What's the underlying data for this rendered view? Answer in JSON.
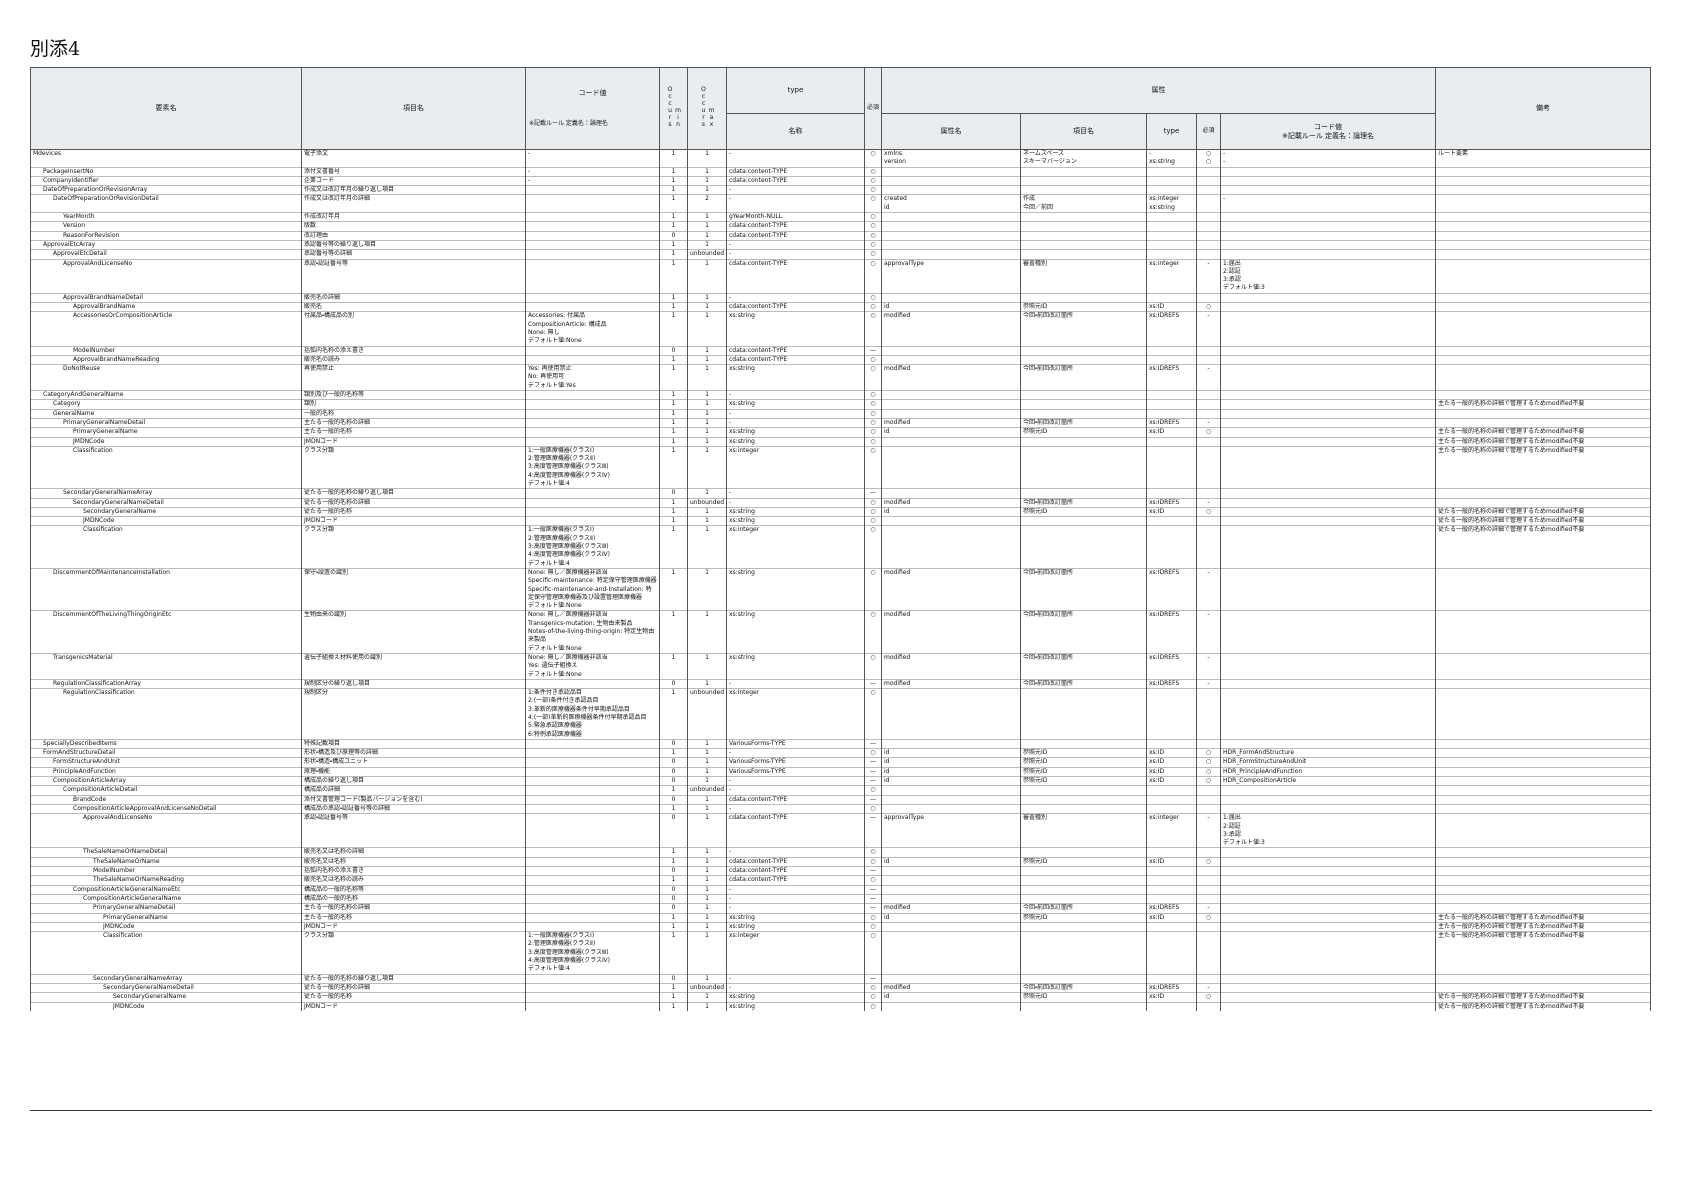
{
  "title": "別添4",
  "header": {
    "element": "要素名",
    "item": "項目名",
    "code": "コード値",
    "code_rule": "※記載ルール 定義名：論理名",
    "occurs": "Occurs",
    "min": "min",
    "max": "max",
    "type": "type",
    "type_name": "名称",
    "required": "必須",
    "attributes": "属性",
    "attr_name": "属性名",
    "attr_item": "項目名",
    "attr_type": "type",
    "attr_required": "必須",
    "attr_code": "コード値\n※記載ルール 定義名：論理名",
    "note": "備考"
  },
  "rows": [
    {
      "element": "Mdevices",
      "item": "電子添文",
      "code": "-",
      "min": "1",
      "max": "1",
      "type": "-",
      "required": "○",
      "attr_name": "xmlns\nversion",
      "attr_item": "ネームスペース\nスキーマバージョン",
      "attr_type": "-\nxs:string",
      "attr_required": "○\n○",
      "attr_code": "-\n-",
      "note": "ルート要素"
    },
    {
      "element": "PackageInsertNo",
      "item": "添付文書番号",
      "code": "-",
      "min": "1",
      "max": "1",
      "type": "cdata:content-TYPE",
      "required": "○"
    },
    {
      "element": "CompanyIdentifier",
      "item": "企業コード",
      "code": "-",
      "min": "1",
      "max": "1",
      "type": "cdata:content-TYPE",
      "required": "○"
    },
    {
      "element": "DateOfPreparationOrRevisionArray",
      "item": "作成又は改訂年月の繰り返し項目",
      "min": "1",
      "max": "1",
      "type": "-",
      "required": "○"
    },
    {
      "element": "DateOfPreparationOrRevisionDetail",
      "item": "作成又は改訂年月の詳細",
      "min": "1",
      "max": "2",
      "type": "-",
      "required": "○",
      "attr_name": "created\nid",
      "attr_item": "作成\n今回／前回",
      "attr_type": "xs:integer\nxs:string",
      "attr_code": "-"
    },
    {
      "element": "YearMonth",
      "item": "作成改訂年月",
      "min": "1",
      "max": "1",
      "type": "gYearMonth-NULL",
      "required": "○"
    },
    {
      "element": "Version",
      "item": "版数",
      "min": "1",
      "max": "1",
      "type": "cdata:content-TYPE",
      "required": "○"
    },
    {
      "element": "ReasonForRevision",
      "item": "改訂理由",
      "min": "0",
      "max": "1",
      "type": "cdata:content-TYPE",
      "required": "○"
    },
    {
      "element": "ApprovalEtcArray",
      "item": "承認番号等の繰り返し項目",
      "min": "1",
      "max": "1",
      "type": "-",
      "required": "○"
    },
    {
      "element": "ApprovalEtcDetail",
      "item": "承認番号等の詳細",
      "min": "1",
      "max": "unbounded",
      "type": "-",
      "required": "○"
    },
    {
      "element": "ApprovalAndLicenseNo",
      "item": "承認・認証番号等",
      "min": "1",
      "max": "1",
      "type": "cdata:content-TYPE",
      "required": "○",
      "attr_name": "approvalType",
      "attr_item": "審査種別",
      "attr_type": "xs:integer",
      "attr_required": "-",
      "attr_code": "1:届出\n2:認証\n3:承認\nデフォルト値:3"
    },
    {
      "element": "ApprovalBrandNameDetail",
      "item": "販売名の詳細",
      "min": "1",
      "max": "1",
      "type": "-",
      "required": "○"
    },
    {
      "element": "ApprovalBrandName",
      "item": "販売名",
      "min": "1",
      "max": "1",
      "type": "cdata:content-TYPE",
      "required": "○",
      "attr_name": "id",
      "attr_item": "参照元ID",
      "attr_type": "xs:ID",
      "attr_required": "○"
    },
    {
      "element": "AccessoriesOrCompositionArticle",
      "item": "付属品・構成品の別",
      "code": "Accessories: 付属品\nCompositionArticle: 構成品\nNone: 無し\nデフォルト値:None",
      "min": "1",
      "max": "1",
      "type": "xs:string",
      "required": "○",
      "attr_name": "modified",
      "attr_item": "今回・前回改訂箇所",
      "attr_type": "xs:IDREFS",
      "attr_required": "-"
    },
    {
      "element": "ModelNumber",
      "item": "括弧内名称の添え書き",
      "min": "0",
      "max": "1",
      "type": "cdata:content-TYPE",
      "required": "—"
    },
    {
      "element": "ApprovalBrandNameReading",
      "item": "販売名の読み",
      "min": "1",
      "max": "1",
      "type": "cdata:content-TYPE",
      "required": "○"
    },
    {
      "element": "DoNotReuse",
      "item": "再使用禁止",
      "code": "Yes: 再使用禁止\nNo: 再使用可\nデフォルト値:Yes",
      "min": "1",
      "max": "1",
      "type": "xs:string",
      "required": "○",
      "attr_name": "modified",
      "attr_item": "今回・前回改訂箇所",
      "attr_type": "xs:IDREFS",
      "attr_required": "-"
    },
    {
      "element": "CategoryAndGeneralName",
      "item": "類別及び一般的名称等",
      "min": "1",
      "max": "1",
      "type": "-",
      "required": "○"
    },
    {
      "element": "Category",
      "item": "類別",
      "min": "1",
      "max": "1",
      "type": "xs:string",
      "required": "○",
      "note": "主たる一般的名称の詳細で管理するためmodified不要"
    },
    {
      "element": "GeneralName",
      "item": "一般的名称",
      "min": "1",
      "max": "1",
      "type": "-",
      "required": "○"
    },
    {
      "element": "PrimaryGeneralNameDetail",
      "item": "主たる一般的名称の詳細",
      "min": "1",
      "max": "1",
      "type": "-",
      "required": "○",
      "attr_name": "modified",
      "attr_item": "今回・前回改訂箇所",
      "attr_type": "xs:IDREFS",
      "attr_required": "-"
    },
    {
      "element": "PrimaryGeneralName",
      "item": "主たる一般的名称",
      "min": "1",
      "max": "1",
      "type": "xs:string",
      "required": "○",
      "attr_name": "id",
      "attr_item": "参照元ID",
      "attr_type": "xs:ID",
      "attr_required": "○",
      "note": "主たる一般的名称の詳細で管理するためmodified不要"
    },
    {
      "element": "JMDNCode",
      "item": "JMDNコード",
      "min": "1",
      "max": "1",
      "type": "xs:string",
      "required": "○",
      "note": "主たる一般的名称の詳細で管理するためmodified不要"
    },
    {
      "element": "Classification",
      "item": "クラス分類",
      "code": "1:一般医療機器(クラスⅠ)\n2:管理医療機器(クラスⅡ)\n3:高度管理医療機器(クラスⅢ)\n4:高度管理医療機器(クラスⅣ)\nデフォルト値:4",
      "min": "1",
      "max": "1",
      "type": "xs:integer",
      "required": "○",
      "note": "主たる一般的名称の詳細で管理するためmodified不要"
    },
    {
      "element": "SecondaryGeneralNameArray",
      "item": "従たる一般的名称の繰り返し項目",
      "min": "0",
      "max": "1",
      "type": "-",
      "required": "—"
    },
    {
      "element": "SecondaryGeneralNameDetail",
      "item": "従たる一般的名称の詳細",
      "min": "1",
      "max": "unbounded",
      "type": "-",
      "required": "○",
      "attr_name": "modified",
      "attr_item": "今回・前回改訂箇所",
      "attr_type": "xs:IDREFS",
      "attr_required": "-"
    },
    {
      "element": "SecondaryGeneralName",
      "item": "従たる一般的名称",
      "min": "1",
      "max": "1",
      "type": "xs:string",
      "required": "○",
      "attr_name": "id",
      "attr_item": "参照元ID",
      "attr_type": "xs:ID",
      "attr_required": "○",
      "note": "従たる一般的名称の詳細で管理するためmodified不要"
    },
    {
      "element": "JMDNCode",
      "item": "JMDNコード",
      "min": "1",
      "max": "1",
      "type": "xs:string",
      "required": "○",
      "note": "従たる一般的名称の詳細で管理するためmodified不要"
    },
    {
      "element": "Classification",
      "item": "クラス分類",
      "code": "1:一般医療機器(クラスⅠ)\n2:管理医療機器(クラスⅡ)\n3:高度管理医療機器(クラスⅢ)\n4:高度管理医療機器(クラスⅣ)\nデフォルト値:4",
      "min": "1",
      "max": "1",
      "type": "xs:integer",
      "required": "○",
      "note": "従たる一般的名称の詳細で管理するためmodified不要"
    },
    {
      "element": "DiscernmentOfMaintenanceInstallation",
      "item": "保守・設置の識別",
      "code": "None: 無し／医療機器非該当\nSpecific-maintenance: 特定保守管理医療機器\nSpecific-maintenance-and-Installation: 特定保守管理医療機器及び設置管理医療機器\nデフォルト値:None",
      "min": "1",
      "max": "1",
      "type": "xs:string",
      "required": "○",
      "attr_name": "modified",
      "attr_item": "今回・前回改訂箇所",
      "attr_type": "xs:IDREFS",
      "attr_required": "-"
    },
    {
      "element": "DiscernmentOfTheLivingThingOriginEtc",
      "item": "生物由来の識別",
      "code": "None: 無し／医療機器非該当\nTransgenics-mutation: 生物由来製品\nNotes-of-the-living-thing-origin: 特定生物由来製品\nデフォルト値:None",
      "min": "1",
      "max": "1",
      "type": "xs:string",
      "required": "○",
      "attr_name": "modified",
      "attr_item": "今回・前回改訂箇所",
      "attr_type": "xs:IDREFS",
      "attr_required": "-"
    },
    {
      "element": "TransgenicsMaterial",
      "item": "遺伝子組換え材料使用の識別",
      "code": "None: 無し／医療機器非該当\nYes: 遺伝子組換え\nデフォルト値:None",
      "min": "1",
      "max": "1",
      "type": "xs:string",
      "required": "○",
      "attr_name": "modified",
      "attr_item": "今回・前回改訂箇所",
      "attr_type": "xs:IDREFS",
      "attr_required": "-"
    },
    {
      "element": "RegulationClassificationArray",
      "item": "規制区分の繰り返し項目",
      "min": "0",
      "max": "1",
      "type": "-",
      "required": "—",
      "attr_name": "modified",
      "attr_item": "今回・前回改訂箇所",
      "attr_type": "xs:IDREFS",
      "attr_required": "-"
    },
    {
      "element": "RegulationClassification",
      "item": "規制区分",
      "code": "1:条件付き承認品目\n2:(一部)条件付き承認品目\n3:革新的医療機器条件付早期承認品目\n4:(一部)革新的医療機器条件付早期承認品目\n5:緊急承認医療機器\n6:特例承認医療機器",
      "min": "1",
      "max": "unbounded",
      "type": "xs:integer",
      "required": "○"
    },
    {
      "element": "SpeciallyDescribedItems",
      "item": "特殊記載項目",
      "min": "0",
      "max": "1",
      "type": "VariousForms-TYPE",
      "required": "—"
    },
    {
      "element": "FormAndStructureDetail",
      "item": "形状・構造及び原理等の詳細",
      "min": "1",
      "max": "1",
      "type": "-",
      "required": "○",
      "attr_name": "id",
      "attr_item": "参照元ID",
      "attr_type": "xs:ID",
      "attr_required": "○",
      "attr_code": "HDR_FormAndStructure"
    },
    {
      "element": "FormStructureAndUnit",
      "item": "形状・構造・構成ユニット",
      "min": "0",
      "max": "1",
      "type": "VariousForms-TYPE",
      "required": "—",
      "attr_name": "id",
      "attr_item": "参照元ID",
      "attr_type": "xs:ID",
      "attr_required": "○",
      "attr_code": "HDR_FormStructureAndUnit"
    },
    {
      "element": "PrincipleAndFunction",
      "item": "原理・機能",
      "min": "0",
      "max": "1",
      "type": "VariousForms-TYPE",
      "required": "—",
      "attr_name": "id",
      "attr_item": "参照元ID",
      "attr_type": "xs:ID",
      "attr_required": "○",
      "attr_code": "HDR_PrincipleAndFunction"
    },
    {
      "element": "CompositionArticleArray",
      "item": "構成品の繰り返し項目",
      "min": "0",
      "max": "1",
      "type": "-",
      "required": "—",
      "attr_name": "id",
      "attr_item": "参照元ID",
      "attr_type": "xs:ID",
      "attr_required": "○",
      "attr_code": "HDR_CompositionArticle"
    },
    {
      "element": "CompositionArticleDetail",
      "item": "構成品の詳細",
      "min": "1",
      "max": "unbounded",
      "type": "-",
      "required": "○"
    },
    {
      "element": "BrandCode",
      "item": "添付文書管理コード(製品バージョンを含む)",
      "min": "0",
      "max": "1",
      "type": "cdata:content-TYPE",
      "required": "—"
    },
    {
      "element": "CompositionArticleApprovalAndLicenseNoDetail",
      "item": "構成品の承認・認証番号等の詳細",
      "min": "1",
      "max": "1",
      "type": "-",
      "required": "○"
    },
    {
      "element": "ApprovalAndLicenseNo",
      "item": "承認・認証番号等",
      "min": "0",
      "max": "1",
      "type": "cdata:content-TYPE",
      "required": "—",
      "attr_name": "approvalType",
      "attr_item": "審査種別",
      "attr_type": "xs:integer",
      "attr_required": "-",
      "attr_code": "1:届出\n2:認証\n3:承認\nデフォルト値:3"
    },
    {
      "element": "TheSaleNameOrNameDetail",
      "item": "販売名又は名称の詳細",
      "min": "1",
      "max": "1",
      "type": "-",
      "required": "○"
    },
    {
      "element": "TheSaleNameOrName",
      "item": "販売名又は名称",
      "min": "1",
      "max": "1",
      "type": "cdata:content-TYPE",
      "required": "○",
      "attr_name": "id",
      "attr_item": "参照元ID",
      "attr_type": "xs:ID",
      "attr_required": "○"
    },
    {
      "element": "ModelNumber",
      "item": "括弧内名称の添え書き",
      "min": "0",
      "max": "1",
      "type": "cdata:content-TYPE",
      "required": "—"
    },
    {
      "element": "TheSaleNameOrNameReading",
      "item": "販売名又は名称の読み",
      "min": "1",
      "max": "1",
      "type": "cdata:content-TYPE",
      "required": "○"
    },
    {
      "element": "CompositionArticleGeneralNameEtc",
      "item": "構成品の一般的名称等",
      "min": "0",
      "max": "1",
      "type": "-",
      "required": "—"
    },
    {
      "element": "CompositionArticleGeneralName",
      "item": "構成品の一般的名称",
      "min": "0",
      "max": "1",
      "type": "-",
      "required": "—"
    },
    {
      "element": "PrimaryGeneralNameDetail",
      "item": "主たる一般的名称の詳細",
      "min": "0",
      "max": "1",
      "type": "-",
      "required": "—",
      "attr_name": "modified",
      "attr_item": "今回・前回改訂箇所",
      "attr_type": "xs:IDREFS",
      "attr_required": "-"
    },
    {
      "element": "PrimaryGeneralName",
      "item": "主たる一般的名称",
      "min": "1",
      "max": "1",
      "type": "xs:string",
      "required": "○",
      "attr_name": "id",
      "attr_item": "参照元ID",
      "attr_type": "xs:ID",
      "attr_required": "○",
      "note": "主たる一般的名称の詳細で管理するためmodified不要"
    },
    {
      "element": "JMDNCode",
      "item": "JMDNコード",
      "min": "1",
      "max": "1",
      "type": "xs:string",
      "required": "○",
      "note": "主たる一般的名称の詳細で管理するためmodified不要"
    },
    {
      "element": "Classification",
      "item": "クラス分類",
      "code": "1:一般医療機器(クラスⅠ)\n2:管理医療機器(クラスⅡ)\n3:高度管理医療機器(クラスⅢ)\n4:高度管理医療機器(クラスⅣ)\nデフォルト値:4",
      "min": "1",
      "max": "1",
      "type": "xs:integer",
      "required": "○",
      "note": "主たる一般的名称の詳細で管理するためmodified不要"
    },
    {
      "element": "SecondaryGeneralNameArray",
      "item": "従たる一般的名称の繰り返し項目",
      "min": "0",
      "max": "1",
      "type": "-",
      "required": "—"
    },
    {
      "element": "SecondaryGeneralNameDetail",
      "item": "従たる一般的名称の詳細",
      "min": "1",
      "max": "unbounded",
      "type": "-",
      "required": "○",
      "attr_name": "modified",
      "attr_item": "今回・前回改訂箇所",
      "attr_type": "xs:IDREFS",
      "attr_required": "-"
    },
    {
      "element": "SecondaryGeneralName",
      "item": "従たる一般的名称",
      "min": "1",
      "max": "1",
      "type": "xs:string",
      "required": "○",
      "attr_name": "id",
      "attr_item": "参照元ID",
      "attr_type": "xs:ID",
      "attr_required": "○",
      "note": "従たる一般的名称の詳細で管理するためmodified不要"
    },
    {
      "element": "JMDNCode",
      "item": "JMDNコード",
      "min": "1",
      "max": "1",
      "type": "xs:string",
      "required": "○",
      "note": "従たる一般的名称の詳細で管理するためmodified不要"
    }
  ]
}
